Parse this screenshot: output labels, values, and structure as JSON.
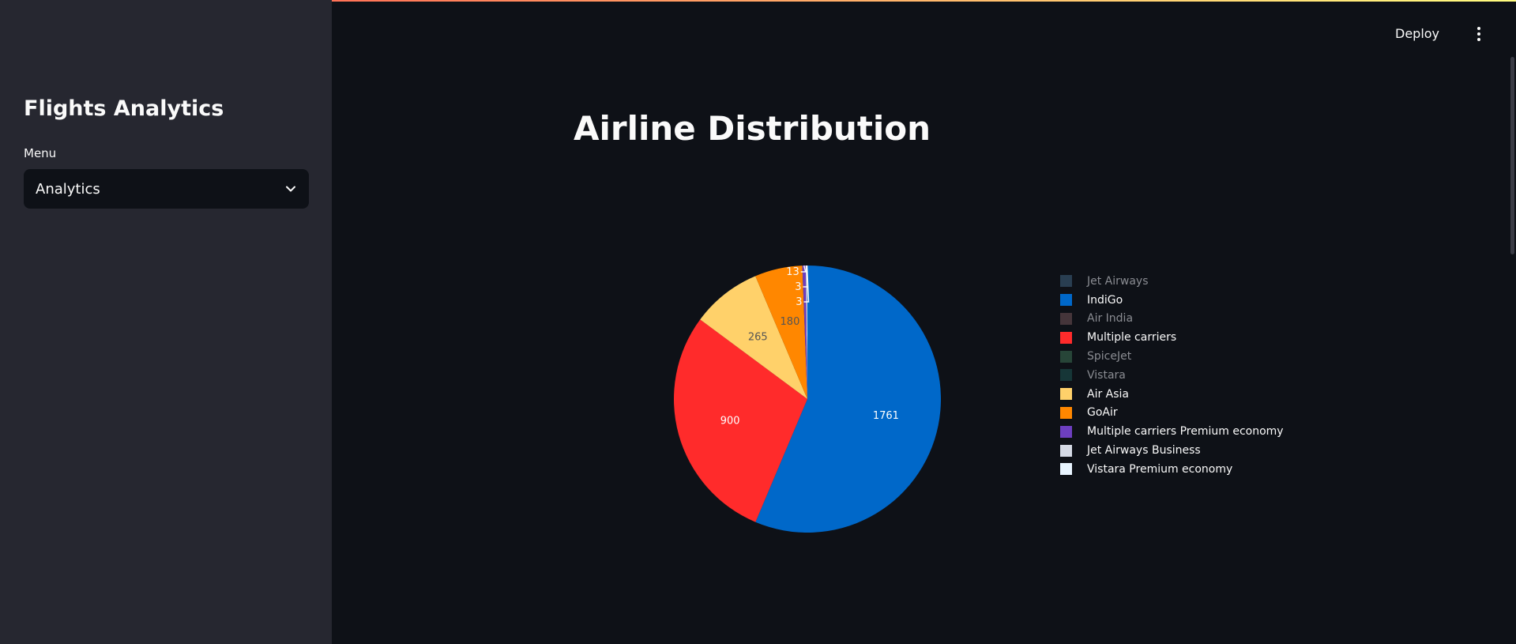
{
  "sidebar": {
    "title": "Flights Analytics",
    "menu_label": "Menu",
    "select_value": "Analytics"
  },
  "header": {
    "deploy_label": "Deploy"
  },
  "chart_data": {
    "type": "pie",
    "title": "Airline Distribution",
    "slices": [
      {
        "label": "Jet Airways",
        "value": 0,
        "color": "#446b8c",
        "visible": false
      },
      {
        "label": "IndiGo",
        "value": 1761,
        "color": "#0068c9",
        "visible": true
      },
      {
        "label": "Air India",
        "value": 0,
        "color": "#7b5a5d",
        "visible": false
      },
      {
        "label": "Multiple carriers",
        "value": 900,
        "color": "#ff2b2b",
        "visible": true
      },
      {
        "label": "SpiceJet",
        "value": 0,
        "color": "#3f7a5a",
        "visible": false
      },
      {
        "label": "Vistara",
        "value": 0,
        "color": "#1e5c58",
        "visible": false
      },
      {
        "label": "Air Asia",
        "value": 265,
        "color": "#ffd16a",
        "visible": true
      },
      {
        "label": "GoAir",
        "value": 180,
        "color": "#ff8700",
        "visible": true
      },
      {
        "label": "Multiple carriers Premium economy",
        "value": 13,
        "color": "#6d3fc0",
        "visible": true
      },
      {
        "label": "Jet Airways Business",
        "value": 3,
        "color": "#d5dae5",
        "visible": true
      },
      {
        "label": "Vistara Premium economy",
        "value": 3,
        "color": "#e8f4ff",
        "visible": true
      }
    ]
  }
}
